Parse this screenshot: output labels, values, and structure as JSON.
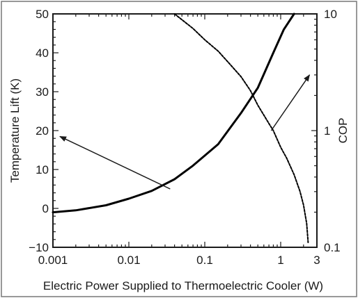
{
  "chart_data": {
    "type": "line",
    "xlabel": "Electric Power Supplied to Thermoelectric Cooler (W)",
    "x_scale": "log",
    "xlim": [
      0.001,
      3
    ],
    "x_tick_labels": [
      "0.001",
      "0.01",
      "0.1",
      "1",
      "3"
    ],
    "x_tick_values": [
      0.001,
      0.01,
      0.1,
      1,
      3
    ],
    "ylabel_left": "Temperature Lift (K)",
    "ylim_left": [
      -10,
      50
    ],
    "y_left_tick_labels": [
      "−10",
      "0",
      "10",
      "20",
      "30",
      "40",
      "50"
    ],
    "y_left_tick_values": [
      -10,
      0,
      10,
      20,
      30,
      40,
      50
    ],
    "ylabel_right": "COP",
    "y_right_scale": "log",
    "ylim_right": [
      0.1,
      10
    ],
    "y_right_tick_labels": [
      "0.1",
      "1",
      "10"
    ],
    "y_right_tick_values": [
      0.1,
      1,
      10
    ],
    "grid": false,
    "series": [
      {
        "axis": "left",
        "style": "solid",
        "color": "#000000",
        "x": [
          0.001,
          0.002,
          0.005,
          0.01,
          0.02,
          0.04,
          0.07,
          0.15,
          0.3,
          0.5,
          0.8,
          1.1,
          1.5
        ],
        "y": [
          -1,
          -0.5,
          0.8,
          2.5,
          4.5,
          7.5,
          11,
          16.5,
          24.5,
          31,
          40,
          46,
          50
        ]
      },
      {
        "axis": "right",
        "style": "dashed",
        "color": "#000000",
        "x": [
          0.04,
          0.07,
          0.1,
          0.15,
          0.2,
          0.3,
          0.4,
          0.5,
          0.7,
          0.8,
          1.0,
          1.2,
          1.5,
          1.8,
          2.0,
          2.2,
          2.3
        ],
        "y": [
          10,
          7.5,
          6.0,
          4.8,
          3.9,
          2.9,
          2.2,
          1.65,
          1.15,
          1.0,
          0.72,
          0.58,
          0.42,
          0.3,
          0.23,
          0.16,
          0.11
        ]
      }
    ],
    "annotations": [
      {
        "type": "arrow",
        "from": {
          "x": 0.035,
          "y": 5
        },
        "to": {
          "x": 0.001,
          "y": 18.5
        },
        "to_axis": "left"
      },
      {
        "type": "arrow",
        "from": {
          "x": 0.75,
          "y": 1.0
        },
        "to": {
          "x": 2.4,
          "y": 3.0
        },
        "to_axis": "right"
      }
    ]
  }
}
